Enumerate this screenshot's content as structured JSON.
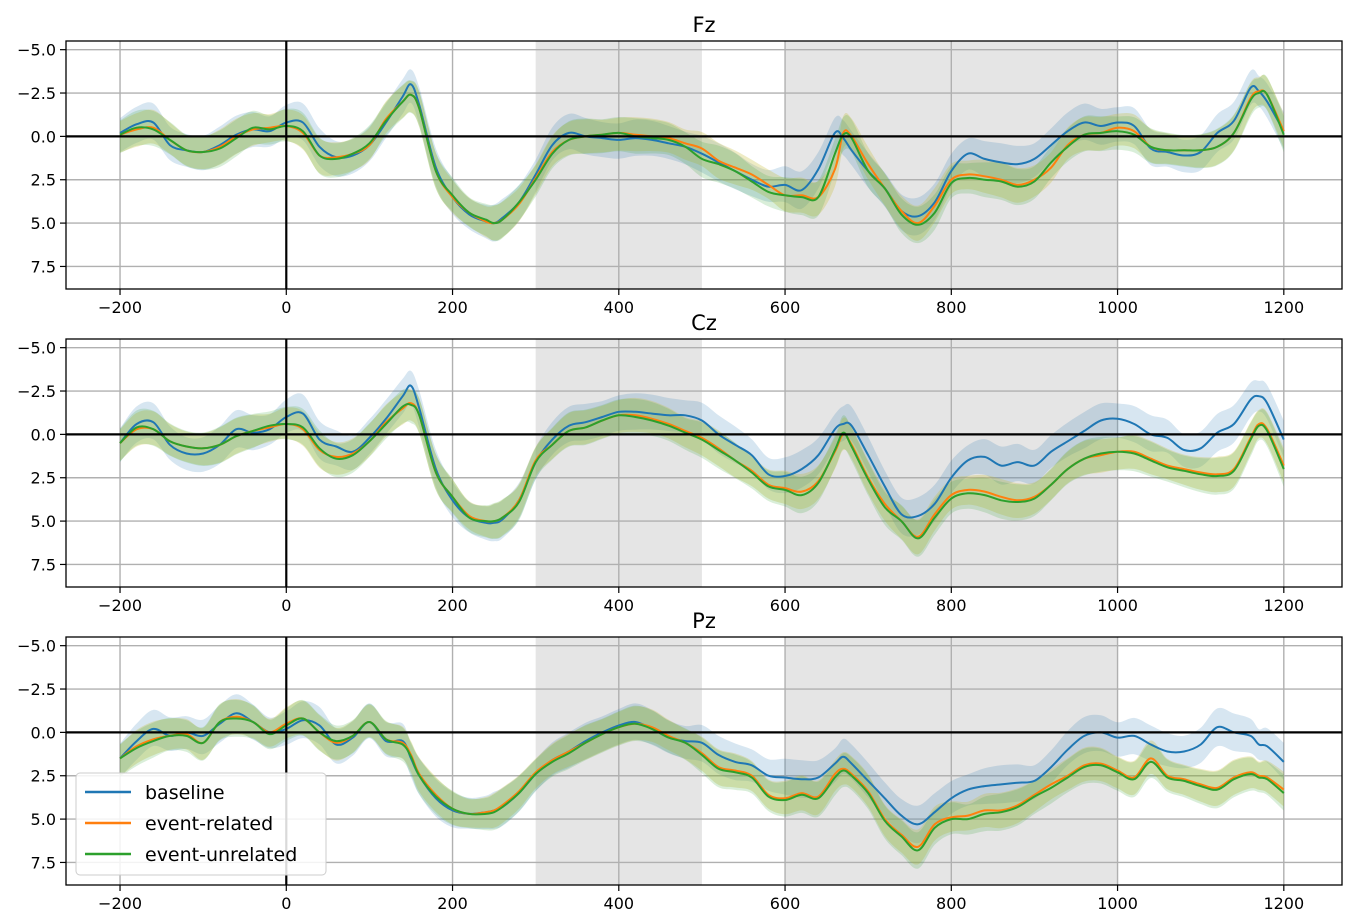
{
  "chart_data": [
    {
      "type": "line",
      "title": "Fz",
      "xlabel": "",
      "ylabel": "",
      "xlim": [
        -265,
        1270
      ],
      "ylim": [
        -5.5,
        8.8
      ],
      "y_inverted": true,
      "xticks": [
        -200,
        0,
        200,
        400,
        600,
        800,
        1000,
        1200
      ],
      "yticks": [
        -5.0,
        -2.5,
        0.0,
        2.5,
        5.0,
        7.5
      ],
      "grid": true,
      "shaded_windows": [
        [
          300,
          500
        ],
        [
          600,
          1000
        ]
      ],
      "reference_lines": {
        "x": 0,
        "y": 0
      },
      "x": [
        -200,
        -180,
        -160,
        -140,
        -120,
        -100,
        -80,
        -60,
        -40,
        -20,
        0,
        20,
        40,
        60,
        80,
        100,
        120,
        140,
        150,
        160,
        180,
        200,
        220,
        240,
        250,
        260,
        280,
        300,
        320,
        340,
        360,
        380,
        400,
        420,
        440,
        460,
        480,
        500,
        520,
        540,
        560,
        580,
        600,
        620,
        640,
        660,
        670,
        680,
        700,
        720,
        740,
        760,
        780,
        800,
        820,
        840,
        860,
        880,
        900,
        920,
        940,
        960,
        980,
        1000,
        1020,
        1040,
        1060,
        1080,
        1100,
        1120,
        1140,
        1160,
        1170,
        1180,
        1200
      ],
      "series": [
        {
          "name": "baseline",
          "values": [
            -0.2,
            -0.7,
            -0.8,
            0.5,
            0.8,
            0.9,
            0.5,
            -0.1,
            -0.4,
            -0.3,
            -0.8,
            -0.8,
            0.6,
            1.2,
            1.1,
            0.5,
            -0.8,
            -2.3,
            -3.0,
            -1.8,
            1.8,
            3.5,
            4.5,
            4.9,
            5.0,
            4.7,
            3.8,
            2.2,
            0.5,
            -0.2,
            0.0,
            0.1,
            0.2,
            0.1,
            0.2,
            0.4,
            0.6,
            1.0,
            1.5,
            2.0,
            2.5,
            2.9,
            2.8,
            3.1,
            1.9,
            -0.2,
            0.1,
            0.8,
            2.0,
            3.0,
            4.3,
            4.6,
            3.8,
            2.0,
            1.0,
            1.3,
            1.5,
            1.6,
            1.3,
            0.5,
            -0.3,
            -0.8,
            -0.6,
            -0.8,
            -0.6,
            0.7,
            0.9,
            1.1,
            0.9,
            -0.2,
            -0.9,
            -2.8,
            -2.6,
            -2.0,
            -0.3
          ]
        },
        {
          "name": "event-related",
          "values": [
            -0.1,
            -0.4,
            -0.5,
            0.2,
            0.8,
            0.9,
            0.6,
            0.0,
            -0.4,
            -0.5,
            -0.6,
            -0.2,
            1.1,
            1.2,
            1.0,
            0.5,
            -1.0,
            -2.0,
            -2.4,
            -1.6,
            2.0,
            3.5,
            4.4,
            4.9,
            5.0,
            4.8,
            3.9,
            2.4,
            0.9,
            0.2,
            0.0,
            -0.1,
            -0.2,
            -0.1,
            0.0,
            0.1,
            0.4,
            0.7,
            1.4,
            1.8,
            2.2,
            2.8,
            3.4,
            3.4,
            3.5,
            1.9,
            -0.2,
            0.0,
            1.6,
            3.0,
            4.3,
            5.0,
            4.0,
            2.5,
            2.2,
            2.3,
            2.5,
            2.8,
            2.5,
            1.8,
            0.5,
            -0.1,
            -0.2,
            -0.5,
            -0.3,
            0.6,
            0.8,
            0.8,
            0.8,
            0.6,
            -0.2,
            -2.2,
            -2.6,
            -2.4,
            -0.3
          ]
        },
        {
          "name": "event-unrelated",
          "values": [
            -0.1,
            -0.5,
            -0.4,
            0.2,
            0.8,
            0.9,
            0.7,
            0.1,
            -0.5,
            -0.4,
            -0.6,
            -0.3,
            1.1,
            1.3,
            1.0,
            0.4,
            -0.9,
            -2.0,
            -2.4,
            -1.6,
            2.0,
            3.4,
            4.4,
            4.8,
            5.0,
            4.8,
            3.8,
            2.5,
            1.0,
            0.2,
            0.0,
            -0.1,
            -0.2,
            0.0,
            0.1,
            0.2,
            0.6,
            1.3,
            1.6,
            2.0,
            2.6,
            3.2,
            3.4,
            3.5,
            3.5,
            1.0,
            -0.1,
            0.1,
            2.0,
            3.0,
            4.5,
            5.1,
            4.4,
            2.7,
            2.4,
            2.5,
            2.6,
            2.9,
            2.6,
            1.5,
            0.6,
            -0.1,
            -0.2,
            -0.3,
            -0.1,
            0.6,
            0.8,
            0.8,
            0.8,
            0.6,
            -0.2,
            -2.1,
            -2.5,
            -2.4,
            -0.1
          ]
        }
      ]
    },
    {
      "type": "line",
      "title": "Cz",
      "xlabel": "",
      "ylabel": "",
      "xlim": [
        -265,
        1270
      ],
      "ylim": [
        -5.5,
        8.8
      ],
      "y_inverted": true,
      "xticks": [
        -200,
        0,
        200,
        400,
        600,
        800,
        1000,
        1200
      ],
      "yticks": [
        -5.0,
        -2.5,
        0.0,
        2.5,
        5.0,
        7.5
      ],
      "grid": true,
      "shaded_windows": [
        [
          300,
          500
        ],
        [
          600,
          1000
        ]
      ],
      "reference_lines": {
        "x": 0,
        "y": 0
      },
      "x": [
        -200,
        -180,
        -160,
        -140,
        -120,
        -100,
        -80,
        -60,
        -40,
        -20,
        0,
        20,
        40,
        60,
        80,
        100,
        120,
        140,
        150,
        160,
        180,
        200,
        220,
        240,
        250,
        260,
        280,
        300,
        320,
        340,
        360,
        380,
        400,
        420,
        440,
        460,
        480,
        500,
        520,
        540,
        560,
        580,
        600,
        620,
        640,
        660,
        670,
        680,
        700,
        720,
        740,
        760,
        780,
        800,
        820,
        840,
        860,
        880,
        900,
        920,
        940,
        960,
        980,
        1000,
        1020,
        1040,
        1060,
        1080,
        1100,
        1120,
        1140,
        1160,
        1170,
        1180,
        1200
      ],
      "series": [
        {
          "name": "baseline",
          "values": [
            0.5,
            -0.6,
            -0.7,
            0.6,
            1.1,
            1.1,
            0.6,
            -0.3,
            -0.1,
            -0.3,
            -1.0,
            -1.2,
            0.3,
            0.7,
            1.0,
            0.2,
            -0.9,
            -2.2,
            -2.8,
            -1.5,
            2.0,
            3.8,
            4.8,
            5.1,
            5.1,
            4.9,
            3.8,
            1.6,
            0.3,
            -0.5,
            -0.7,
            -1.0,
            -1.3,
            -1.3,
            -1.2,
            -1.1,
            -1.1,
            -0.8,
            0.0,
            0.6,
            1.2,
            2.3,
            2.4,
            2.0,
            1.2,
            -0.3,
            -0.6,
            -0.5,
            1.2,
            3.0,
            4.6,
            4.7,
            4.0,
            2.5,
            1.5,
            1.3,
            1.8,
            1.6,
            1.8,
            1.0,
            0.4,
            -0.2,
            -0.8,
            -0.9,
            -0.6,
            0.0,
            0.2,
            0.9,
            0.8,
            -0.1,
            -0.6,
            -2.0,
            -2.2,
            -1.8,
            0.3
          ]
        },
        {
          "name": "event-related",
          "values": [
            0.5,
            -0.3,
            -0.3,
            0.4,
            0.7,
            0.8,
            0.6,
            0.1,
            -0.2,
            -0.4,
            -0.6,
            -0.3,
            0.9,
            1.3,
            1.1,
            0.4,
            -0.7,
            -1.5,
            -1.8,
            -1.1,
            2.2,
            3.6,
            4.7,
            5.0,
            5.0,
            4.8,
            3.8,
            1.5,
            0.6,
            -0.2,
            -0.4,
            -0.8,
            -1.1,
            -1.1,
            -0.9,
            -0.6,
            -0.2,
            0.2,
            0.8,
            1.5,
            2.1,
            2.9,
            3.1,
            3.3,
            2.7,
            1.0,
            0.0,
            0.6,
            2.5,
            4.0,
            5.0,
            5.9,
            4.6,
            3.5,
            3.2,
            3.3,
            3.6,
            3.8,
            3.6,
            2.9,
            2.0,
            1.4,
            1.2,
            1.0,
            1.0,
            1.4,
            1.8,
            2.0,
            2.2,
            2.3,
            2.0,
            0.2,
            -0.6,
            -0.3,
            1.8
          ]
        },
        {
          "name": "event-unrelated",
          "values": [
            0.5,
            -0.4,
            -0.3,
            0.4,
            0.7,
            0.8,
            0.6,
            0.1,
            -0.2,
            -0.5,
            -0.6,
            -0.4,
            0.8,
            1.4,
            1.2,
            0.4,
            -0.6,
            -1.6,
            -1.7,
            -1.1,
            2.2,
            3.6,
            4.8,
            5.0,
            5.0,
            4.8,
            3.9,
            1.6,
            0.6,
            -0.2,
            -0.4,
            -0.8,
            -1.1,
            -1.0,
            -0.8,
            -0.5,
            -0.1,
            0.3,
            0.9,
            1.5,
            2.2,
            3.0,
            3.2,
            3.5,
            2.8,
            0.9,
            -0.1,
            0.7,
            2.6,
            4.2,
            5.0,
            6.0,
            4.8,
            3.7,
            3.4,
            3.5,
            3.8,
            3.9,
            3.7,
            2.9,
            2.0,
            1.4,
            1.1,
            1.0,
            1.1,
            1.5,
            1.9,
            2.1,
            2.3,
            2.4,
            2.1,
            0.3,
            -0.5,
            -0.2,
            2.0
          ]
        }
      ]
    },
    {
      "type": "line",
      "title": "Pz",
      "xlabel": "",
      "ylabel": "",
      "xlim": [
        -265,
        1270
      ],
      "ylim": [
        -5.5,
        8.8
      ],
      "y_inverted": true,
      "xticks": [
        -200,
        0,
        200,
        400,
        600,
        800,
        1000,
        1200
      ],
      "yticks": [
        -5.0,
        -2.5,
        0.0,
        2.5,
        5.0,
        7.5
      ],
      "grid": true,
      "shaded_windows": [
        [
          300,
          500
        ],
        [
          600,
          1000
        ]
      ],
      "reference_lines": {
        "x": 0,
        "y": 0
      },
      "legend": {
        "position": "lower-left",
        "entries": [
          "baseline",
          "event-related",
          "event-unrelated"
        ]
      },
      "x": [
        -200,
        -180,
        -160,
        -140,
        -120,
        -100,
        -80,
        -60,
        -40,
        -20,
        0,
        20,
        40,
        60,
        80,
        100,
        120,
        140,
        150,
        160,
        180,
        200,
        220,
        240,
        250,
        260,
        280,
        300,
        320,
        340,
        360,
        380,
        400,
        420,
        440,
        460,
        480,
        500,
        520,
        540,
        560,
        580,
        600,
        620,
        640,
        660,
        670,
        680,
        700,
        720,
        740,
        760,
        780,
        800,
        820,
        840,
        860,
        880,
        900,
        920,
        940,
        960,
        980,
        1000,
        1020,
        1040,
        1060,
        1080,
        1100,
        1120,
        1140,
        1160,
        1170,
        1180,
        1200
      ],
      "series": [
        {
          "name": "baseline",
          "values": [
            1.5,
            0.5,
            -0.2,
            0.2,
            0.0,
            0.2,
            -0.5,
            -1.1,
            -0.6,
            0.0,
            -0.2,
            -0.7,
            -0.4,
            0.7,
            0.3,
            -0.6,
            0.5,
            0.5,
            1.5,
            2.5,
            3.8,
            4.5,
            4.7,
            4.6,
            4.5,
            4.3,
            3.5,
            2.4,
            1.6,
            1.1,
            0.5,
            0.0,
            -0.4,
            -0.6,
            -0.2,
            0.3,
            0.5,
            0.6,
            1.3,
            1.7,
            1.9,
            2.5,
            2.6,
            2.7,
            2.6,
            1.8,
            1.4,
            1.8,
            2.8,
            3.8,
            4.8,
            5.3,
            4.6,
            3.8,
            3.3,
            3.1,
            3.0,
            2.9,
            2.8,
            2.0,
            1.0,
            0.2,
            0.0,
            0.3,
            0.2,
            0.7,
            1.1,
            1.1,
            0.7,
            -0.3,
            0.0,
            0.2,
            0.7,
            0.8,
            1.7
          ]
        },
        {
          "name": "event-related",
          "values": [
            1.5,
            0.8,
            0.4,
            0.2,
            0.1,
            0.6,
            -0.6,
            -0.9,
            -0.6,
            0.0,
            -0.5,
            -0.8,
            0.0,
            0.6,
            0.2,
            -0.6,
            0.4,
            0.6,
            1.3,
            2.4,
            3.6,
            4.4,
            4.7,
            4.6,
            4.5,
            4.2,
            3.4,
            2.3,
            1.6,
            1.1,
            0.6,
            0.1,
            -0.3,
            -0.5,
            -0.3,
            0.2,
            0.6,
            1.2,
            2.0,
            2.2,
            2.5,
            3.6,
            3.8,
            3.5,
            3.7,
            2.4,
            2.1,
            2.4,
            3.4,
            5.0,
            5.9,
            6.6,
            5.3,
            4.9,
            4.8,
            4.5,
            4.5,
            4.2,
            3.6,
            3.0,
            2.5,
            1.9,
            1.8,
            2.2,
            2.6,
            1.5,
            2.5,
            2.7,
            3.0,
            3.2,
            2.6,
            2.3,
            2.5,
            2.6,
            3.3
          ]
        },
        {
          "name": "event-unrelated",
          "values": [
            1.5,
            0.9,
            0.5,
            0.2,
            0.2,
            0.6,
            -0.6,
            -0.8,
            -0.6,
            0.1,
            -0.4,
            -0.8,
            0.0,
            0.5,
            0.2,
            -0.6,
            0.4,
            0.7,
            1.4,
            2.5,
            3.7,
            4.4,
            4.7,
            4.7,
            4.6,
            4.3,
            3.5,
            2.4,
            1.7,
            1.2,
            0.6,
            0.1,
            -0.3,
            -0.5,
            -0.2,
            0.3,
            0.6,
            1.3,
            2.1,
            2.3,
            2.6,
            3.7,
            3.9,
            3.6,
            3.8,
            2.6,
            2.2,
            2.5,
            3.5,
            5.1,
            6.0,
            6.8,
            5.5,
            5.0,
            5.0,
            4.7,
            4.6,
            4.3,
            3.7,
            3.2,
            2.6,
            2.0,
            1.9,
            2.3,
            2.7,
            1.7,
            2.6,
            2.8,
            3.1,
            3.3,
            2.7,
            2.4,
            2.6,
            2.7,
            3.5
          ]
        }
      ]
    }
  ],
  "colors": {
    "baseline": "#1f77b4",
    "event-related": "#ff7f0e",
    "event-unrelated": "#2ca02c"
  }
}
